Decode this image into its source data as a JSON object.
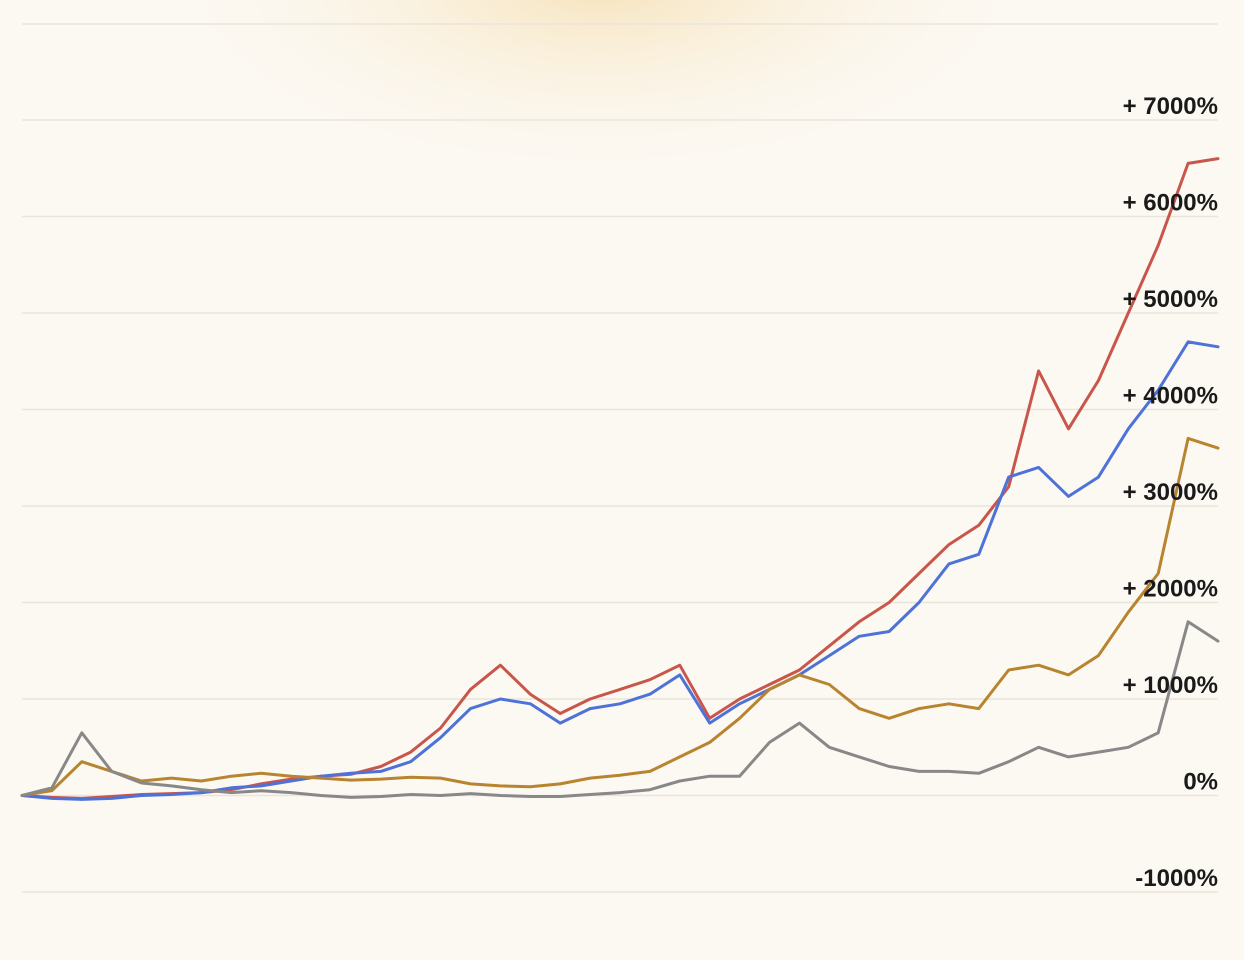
{
  "chart_data": {
    "type": "line",
    "title": "",
    "xlabel": "",
    "ylabel": "",
    "ylim": [
      -1000,
      7000
    ],
    "yticks": [
      {
        "value": 7000,
        "label": "+ 7000%"
      },
      {
        "value": 6000,
        "label": "+ 6000%"
      },
      {
        "value": 5000,
        "label": "+ 5000%"
      },
      {
        "value": 4000,
        "label": "+ 4000%"
      },
      {
        "value": 3000,
        "label": "+ 3000%"
      },
      {
        "value": 2000,
        "label": "+ 2000%"
      },
      {
        "value": 1000,
        "label": "+ 1000%"
      },
      {
        "value": 0,
        "label": "0%"
      },
      {
        "value": -1000,
        "label": "-1000%"
      }
    ],
    "grid": true,
    "legend": "none",
    "x_points": 41,
    "series": [
      {
        "color": "#c9564a",
        "values": [
          0,
          -20,
          -30,
          -10,
          10,
          20,
          30,
          60,
          120,
          170,
          200,
          220,
          300,
          450,
          700,
          1100,
          1350,
          1050,
          850,
          1000,
          1100,
          1200,
          1350,
          800,
          1000,
          1150,
          1300,
          1550,
          1800,
          2000,
          2300,
          2600,
          2800,
          3200,
          4400,
          3800,
          4300,
          5000,
          5700,
          6550,
          6600
        ]
      },
      {
        "color": "#4d72d8",
        "values": [
          0,
          -30,
          -40,
          -30,
          0,
          10,
          30,
          80,
          100,
          150,
          200,
          230,
          250,
          350,
          600,
          900,
          1000,
          950,
          750,
          900,
          950,
          1050,
          1250,
          750,
          950,
          1100,
          1250,
          1450,
          1650,
          1700,
          2000,
          2400,
          2500,
          3300,
          3400,
          3100,
          3300,
          3800,
          4200,
          4700,
          4650
        ]
      },
      {
        "color": "#b8842f",
        "values": [
          0,
          50,
          350,
          250,
          150,
          180,
          150,
          200,
          230,
          200,
          180,
          160,
          170,
          190,
          180,
          120,
          100,
          90,
          120,
          180,
          210,
          250,
          400,
          550,
          800,
          1100,
          1250,
          1150,
          900,
          800,
          900,
          950,
          900,
          1300,
          1350,
          1250,
          1450,
          1900,
          2300,
          3700,
          3600
        ]
      },
      {
        "color": "#888888",
        "values": [
          0,
          80,
          650,
          250,
          130,
          100,
          60,
          30,
          50,
          30,
          0,
          -20,
          -10,
          10,
          0,
          20,
          0,
          -10,
          -10,
          10,
          30,
          60,
          150,
          200,
          200,
          550,
          750,
          500,
          400,
          300,
          250,
          250,
          230,
          350,
          500,
          400,
          450,
          500,
          650,
          1800,
          1600
        ]
      }
    ]
  }
}
